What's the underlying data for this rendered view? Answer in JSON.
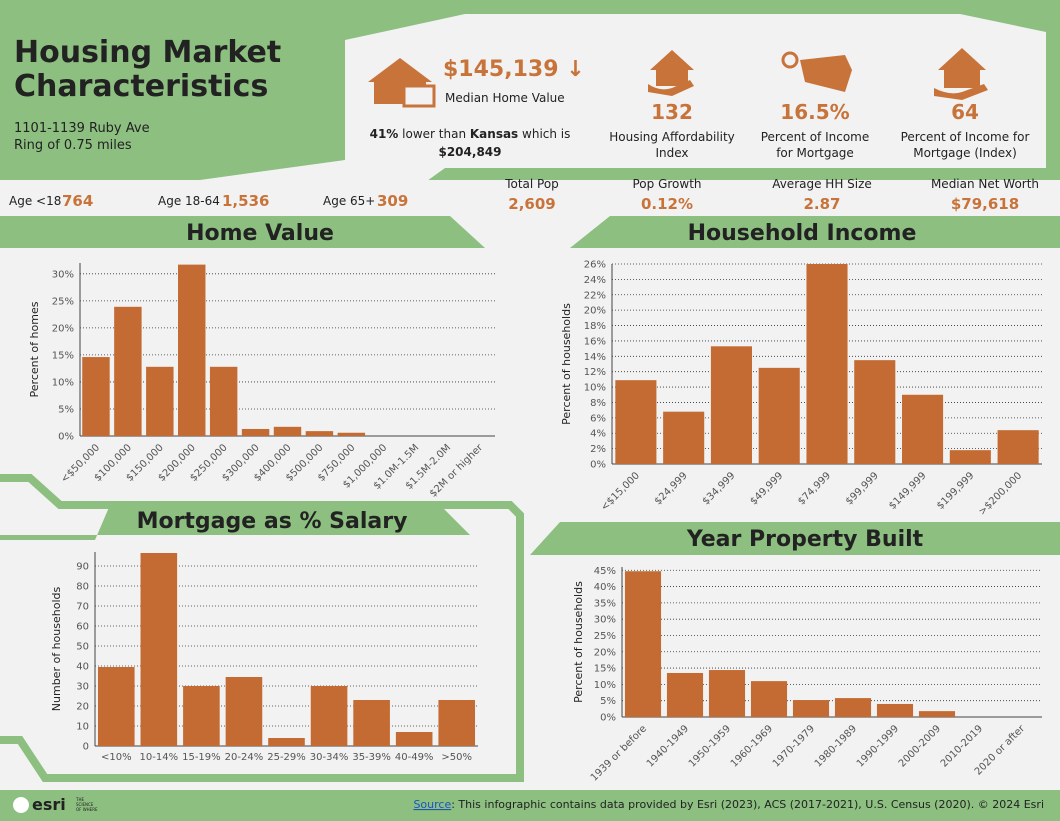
{
  "header": {
    "title": [
      "Housing Market",
      "Characteristics"
    ],
    "address": "1101-1139 Ruby Ave",
    "ring": "Ring of 0.75 miles"
  },
  "home_value": {
    "value": "$145,139",
    "arrow": "↓",
    "label": "Median Home Value",
    "comparison": {
      "percent": "41%",
      "text1": "lower than",
      "state": "Kansas",
      "text2": "which is",
      "state_value": "$204,849"
    }
  },
  "indicators": [
    {
      "value": "132",
      "label": [
        "Housing Affordability",
        "Index"
      ]
    },
    {
      "value": "16.5%",
      "label": [
        "Percent of Income",
        "for Mortgage"
      ]
    },
    {
      "value": "64",
      "label": [
        "Percent of Income for",
        "Mortgage (Index)"
      ]
    }
  ],
  "demographics": [
    {
      "label": "Age <18",
      "value": "764"
    },
    {
      "label": "Age 18-64",
      "value": "1,536"
    },
    {
      "label": "Age 65+",
      "value": "309"
    }
  ],
  "summary": [
    {
      "label": "Total Pop",
      "value": "2,609"
    },
    {
      "label": "Pop Growth",
      "value": "0.12%"
    },
    {
      "label": "Average HH Size",
      "value": "2.87"
    },
    {
      "label": "Median Net Worth",
      "value": "$79,618"
    }
  ],
  "chart_data": [
    {
      "type": "bar",
      "title": "Home Value",
      "ylabel": "Percent of homes",
      "categories": [
        "<$50,000",
        "$100,000",
        "$150,000",
        "$200,000",
        "$250,000",
        "$300,000",
        "$400,000",
        "$500,000",
        "$750,000",
        "$1,000,000",
        "$1.0M-1.5M",
        "$1.5M-2.0M",
        "$2M or higher"
      ],
      "values": [
        14.6,
        23.9,
        12.8,
        31.7,
        12.8,
        1.3,
        1.7,
        0.9,
        0.6,
        0,
        0,
        0,
        0
      ],
      "color": "#c46b33",
      "ylim": [
        0,
        32
      ],
      "yticks": [
        {
          "value": 0,
          "label": "0%"
        },
        {
          "value": 5,
          "label": "5%"
        },
        {
          "value": 10,
          "label": "10%"
        },
        {
          "value": 15,
          "label": "15%"
        },
        {
          "value": 20,
          "label": "20%"
        },
        {
          "value": 25,
          "label": "25%"
        },
        {
          "value": 30,
          "label": "30%"
        }
      ],
      "grid": true
    },
    {
      "type": "bar",
      "title": "Household Income",
      "ylabel": "Percent of households",
      "categories": [
        "<$15,000",
        "$24,999",
        "$34,999",
        "$49,999",
        "$74,999",
        "$99,999",
        "$149,999",
        "$199,999",
        ">$200,000"
      ],
      "values": [
        10.9,
        6.8,
        15.3,
        12.5,
        26.0,
        13.5,
        9.0,
        1.8,
        4.4
      ],
      "color": "#c46b33",
      "ylim": [
        0,
        26
      ],
      "yticks": [
        {
          "value": 0,
          "label": "0%"
        },
        {
          "value": 2,
          "label": "2%"
        },
        {
          "value": 4,
          "label": "4%"
        },
        {
          "value": 6,
          "label": "6%"
        },
        {
          "value": 8,
          "label": "8%"
        },
        {
          "value": 10,
          "label": "10%"
        },
        {
          "value": 12,
          "label": "12%"
        },
        {
          "value": 14,
          "label": "14%"
        },
        {
          "value": 16,
          "label": "16%"
        },
        {
          "value": 18,
          "label": "18%"
        },
        {
          "value": 20,
          "label": "20%"
        },
        {
          "value": 22,
          "label": "22%"
        },
        {
          "value": 24,
          "label": "24%"
        },
        {
          "value": 26,
          "label": "26%"
        }
      ],
      "grid": true
    },
    {
      "type": "bar",
      "title": "Mortgage as % Salary",
      "ylabel": "Number of households",
      "categories": [
        "<10%",
        "10-14%",
        "15-19%",
        "20-24%",
        "25-29%",
        "30-34%",
        "35-39%",
        "40-49%",
        ">50%"
      ],
      "values": [
        39.5,
        96.5,
        30,
        34.5,
        4,
        30,
        23,
        7,
        23
      ],
      "color": "#c46b33",
      "ylim": [
        0,
        97
      ],
      "yticks": [
        0,
        10,
        20,
        30,
        40,
        50,
        60,
        70,
        80,
        90
      ],
      "grid": true
    },
    {
      "type": "bar",
      "title": "Year Property Built",
      "ylabel": "Percent of households",
      "categories": [
        "1939 or before",
        "1940-1949",
        "1950-1959",
        "1960-1969",
        "1970-1979",
        "1980-1989",
        "1990-1999",
        "2000-2009",
        "2010-2019",
        "2020 or after"
      ],
      "values": [
        44.7,
        13.5,
        14.4,
        11,
        5.2,
        5.8,
        4,
        1.8,
        0,
        0
      ],
      "color": "#c46b33",
      "ylim": [
        0,
        46
      ],
      "yticks": [
        {
          "value": 0,
          "label": "0%"
        },
        {
          "value": 5,
          "label": "5%"
        },
        {
          "value": 10,
          "label": "10%"
        },
        {
          "value": 15,
          "label": "15%"
        },
        {
          "value": 20,
          "label": "20%"
        },
        {
          "value": 25,
          "label": "25%"
        },
        {
          "value": 30,
          "label": "30%"
        },
        {
          "value": 35,
          "label": "35%"
        },
        {
          "value": 40,
          "label": "40%"
        },
        {
          "value": 45,
          "label": "45%"
        }
      ],
      "grid": true
    }
  ],
  "footer": {
    "logo": "esri",
    "tagline": [
      "THE",
      "SCIENCE",
      "OF WHERE"
    ],
    "source_link": "Source",
    "source_text": ": This infographic contains data provided by Esri (2023), ACS (2017-2021), U.S. Census (2020). © 2024 Esri"
  }
}
